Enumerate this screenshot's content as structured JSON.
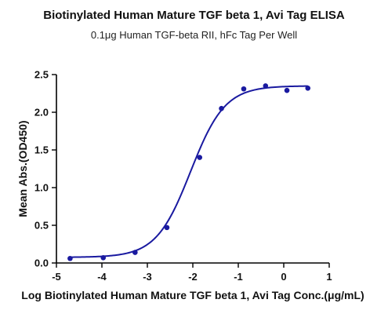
{
  "chart_data": {
    "type": "line",
    "title": "Biotinylated Human Mature TGF beta 1, Avi Tag ELISA",
    "subtitle": "0.1μg Human TGF-beta RII, hFc Tag Per Well",
    "xlabel": "Log Biotinylated Human Mature TGF beta 1, Avi Tag Conc.(μg/mL)",
    "ylabel": "Mean Abs.(OD450)",
    "xlim": [
      -5,
      1
    ],
    "ylim": [
      0,
      2.5
    ],
    "xticks": [
      "-5",
      "-4",
      "-3",
      "-2",
      "-1",
      "0",
      "1"
    ],
    "yticks": [
      "0.0",
      "0.5",
      "1.0",
      "1.5",
      "2.0",
      "2.5"
    ],
    "grid": false,
    "legend": "none",
    "colors": {
      "series": "#1a1aa0",
      "axis": "#000000"
    },
    "series": [
      {
        "points": [
          {
            "x": -4.7,
            "y": 0.06
          },
          {
            "x": -3.97,
            "y": 0.07
          },
          {
            "x": -3.27,
            "y": 0.14
          },
          {
            "x": -2.57,
            "y": 0.47
          },
          {
            "x": -1.85,
            "y": 1.4
          },
          {
            "x": -1.37,
            "y": 2.05
          },
          {
            "x": -0.88,
            "y": 2.31
          },
          {
            "x": -0.4,
            "y": 2.35
          },
          {
            "x": 0.07,
            "y": 2.29
          },
          {
            "x": 0.53,
            "y": 2.32
          }
        ],
        "fit": {
          "model": "4PL",
          "bottom": 0.075,
          "top": 2.35,
          "logEC50": -2.05,
          "hill": 1.15
        }
      }
    ]
  }
}
